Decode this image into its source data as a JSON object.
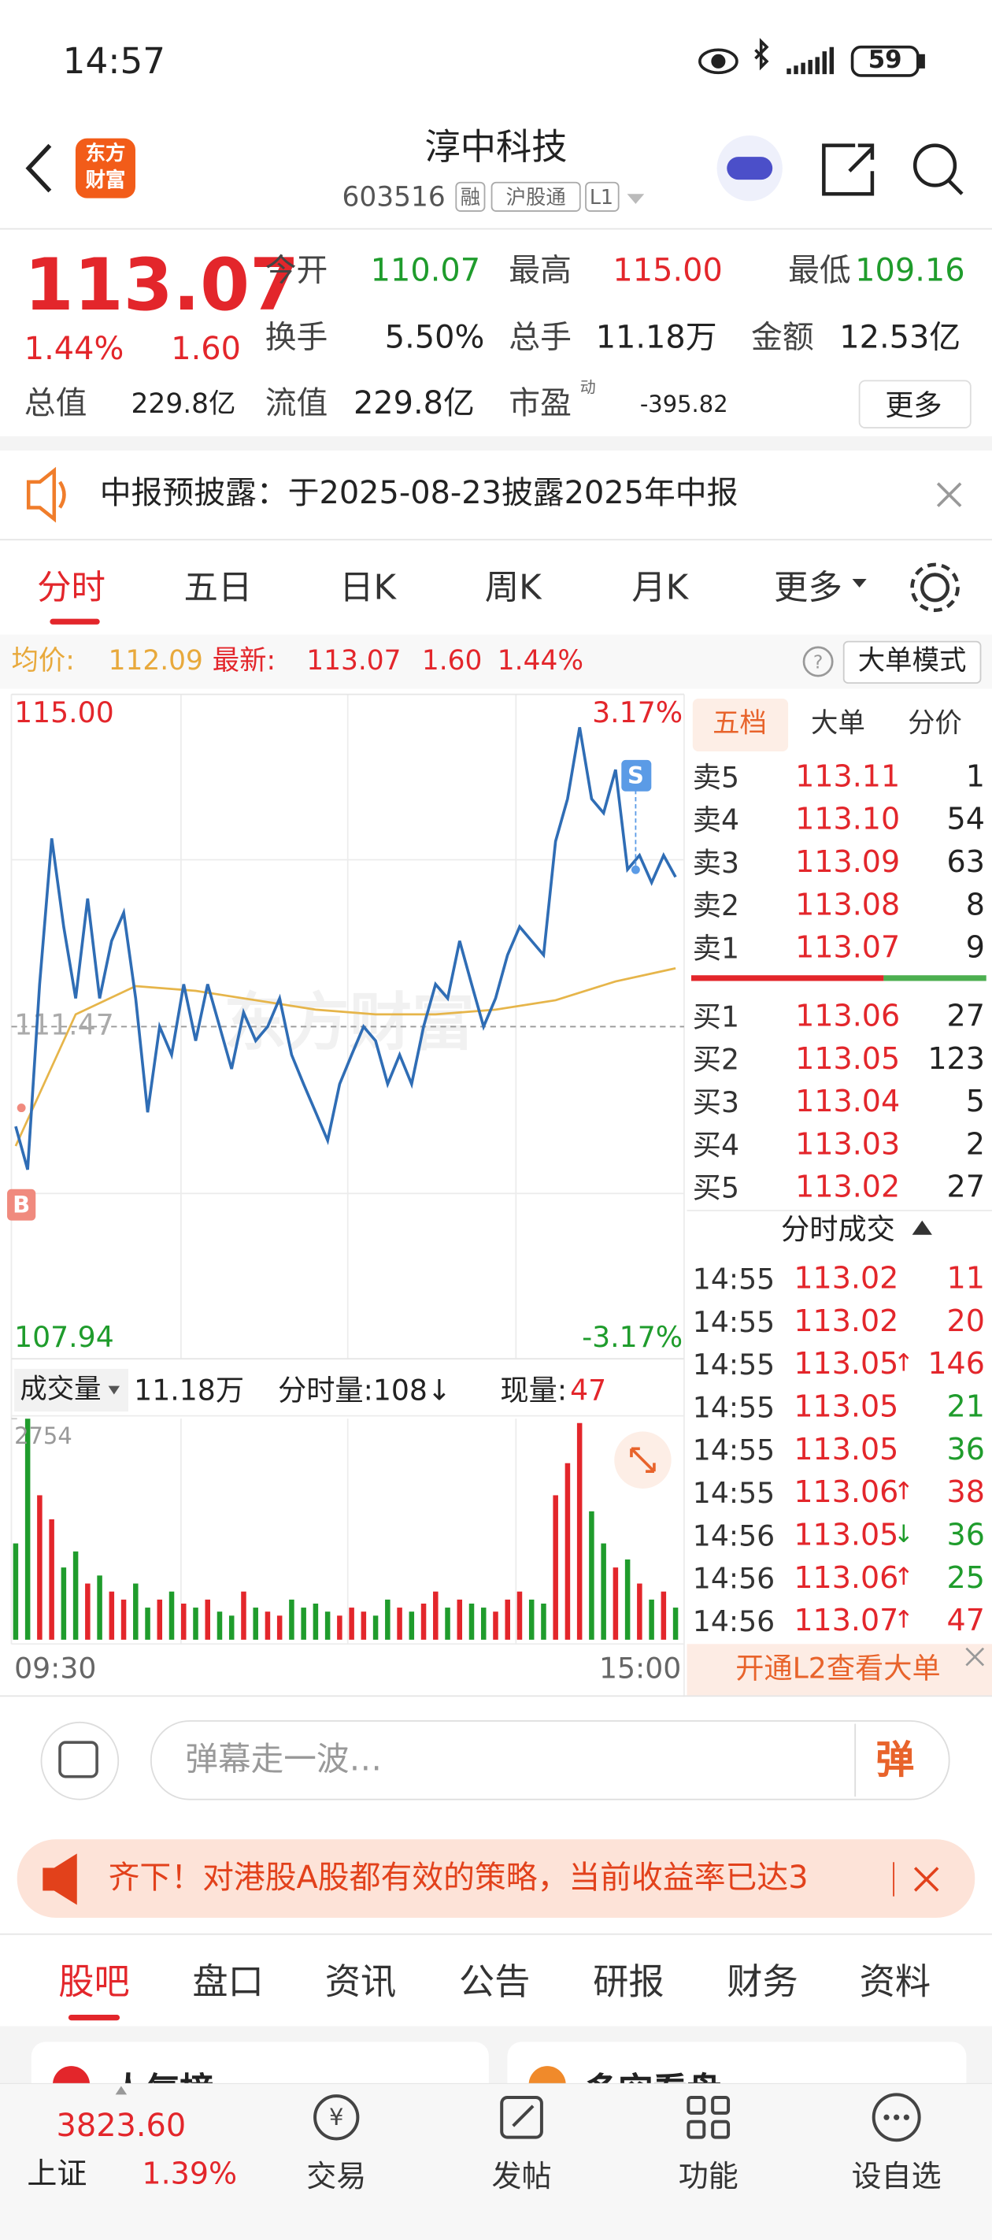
{
  "status_bar": {
    "time": "14:57",
    "battery": "59"
  },
  "header": {
    "logo": [
      "东方",
      "财富"
    ],
    "title": "淳中科技",
    "code": "603516",
    "tags": [
      "融",
      "沪股通",
      "L1"
    ]
  },
  "quote": {
    "price": "113.07",
    "change_pct": "1.44%",
    "change": "1.60",
    "fields": [
      {
        "label": "今开",
        "value": "110.07",
        "color": "#1f9c2c"
      },
      {
        "label": "最高",
        "value": "115.00",
        "color": "#e3262b"
      },
      {
        "label": "最低",
        "value": "109.16",
        "color": "#1f9c2c"
      },
      {
        "label": "换手",
        "value": "5.50%"
      },
      {
        "label": "总手",
        "value": "11.18万"
      },
      {
        "label": "金额",
        "value": "12.53亿"
      },
      {
        "label": "总值",
        "value": "229.8亿"
      },
      {
        "label": "流值",
        "value": "229.8亿"
      },
      {
        "label": "市盈",
        "sup": "动",
        "value": "-395.82"
      }
    ],
    "more": "更多"
  },
  "notice": {
    "text": "中报预披露：于2025-08-23披露2025年中报"
  },
  "period_tabs": {
    "items": [
      "分时",
      "五日",
      "日K",
      "周K",
      "月K",
      "更多"
    ]
  },
  "info_bar": {
    "avg_label": "均价:",
    "avg": "112.09",
    "last_label": "最新:",
    "last": "113.07",
    "change": "1.60",
    "change_pct": "1.44%",
    "mode": "大单模式"
  },
  "chart_data": [
    {
      "type": "line",
      "ylim": [
        107.94,
        115.0
      ],
      "yticks": [
        {
          "value": 115,
          "label": "115.00"
        },
        {
          "value": 111.47,
          "label": "111.47"
        },
        {
          "value": 107.94,
          "label": "107.94"
        }
      ],
      "y2lim": [
        -3.17,
        3.17
      ],
      "y2ticks": [
        {
          "value": 3.17,
          "label": "3.17%"
        },
        {
          "value": -3.17,
          "label": "-3.17%"
        }
      ],
      "series": [
        {
          "color": "#2f6db5",
          "values": [
            110.41,
            109.95,
            111.92,
            113.47,
            112.53,
            111.77,
            112.83,
            111.77,
            112.38,
            112.68,
            111.77,
            110.56,
            111.47,
            111.17,
            111.92,
            111.32,
            111.92,
            111.47,
            111.02,
            111.62,
            111.32,
            111.47,
            111.77,
            111.17,
            110.86,
            110.56,
            110.26,
            110.86,
            111.17,
            111.47,
            111.32,
            110.86,
            111.17,
            110.86,
            111.47,
            111.92,
            111.77,
            112.38,
            111.92,
            111.47,
            111.77,
            112.23,
            112.53,
            112.38,
            112.23,
            113.44,
            113.89,
            114.65,
            113.89,
            113.74,
            114.2,
            113.14,
            113.29,
            113.0,
            113.29,
            113.06
          ]
        },
        {
          "color": "#e6b54a",
          "values": [
            110.2,
            111.6,
            111.9,
            111.85,
            111.75,
            111.65,
            111.6,
            111.6,
            111.65,
            111.75,
            111.95,
            112.09
          ]
        }
      ],
      "markers": [
        "B",
        "S"
      ],
      "watermark": "东方财富"
    },
    {
      "type": "bar",
      "selector": "成交量",
      "total": "11.18万",
      "minute_vol": "分时量:108↓",
      "now_label": "现量:",
      "now": "47",
      "ylim": [
        0,
        2754
      ],
      "yticks": [
        2754
      ],
      "up_color": "#e3262b",
      "down_color": "#1f9c2c",
      "x_labels": [
        "09:30",
        "15:00"
      ],
      "values": [
        1200,
        2754,
        1800,
        1500,
        900,
        1100,
        700,
        800,
        600,
        500,
        700,
        400,
        500,
        600,
        450,
        400,
        500,
        350,
        300,
        600,
        400,
        350,
        300,
        500,
        400,
        450,
        350,
        300,
        400,
        350,
        300,
        500,
        400,
        350,
        450,
        600,
        400,
        500,
        450,
        400,
        350,
        500,
        600,
        500,
        450,
        1800,
        2200,
        2700,
        1600,
        1200,
        900,
        1000,
        700,
        500,
        600,
        400
      ]
    }
  ],
  "order_book": {
    "tabs": [
      "五档",
      "大单",
      "分价"
    ],
    "asks": [
      {
        "label": "卖5",
        "price": "113.11",
        "vol": "1"
      },
      {
        "label": "卖4",
        "price": "113.10",
        "vol": "54"
      },
      {
        "label": "卖3",
        "price": "113.09",
        "vol": "63"
      },
      {
        "label": "卖2",
        "price": "113.08",
        "vol": "8"
      },
      {
        "label": "卖1",
        "price": "113.07",
        "vol": "9"
      }
    ],
    "bids": [
      {
        "label": "买1",
        "price": "113.06",
        "vol": "27"
      },
      {
        "label": "买2",
        "price": "113.05",
        "vol": "123"
      },
      {
        "label": "买3",
        "price": "113.04",
        "vol": "5"
      },
      {
        "label": "买4",
        "price": "113.03",
        "vol": "2"
      },
      {
        "label": "买5",
        "price": "113.02",
        "vol": "27"
      }
    ],
    "trades_title": "分时成交",
    "trades": [
      {
        "time": "14:55",
        "price": "113.02",
        "vol": "11",
        "vol_color": "#e3262b"
      },
      {
        "time": "14:55",
        "price": "113.02",
        "vol": "20",
        "vol_color": "#e3262b"
      },
      {
        "time": "14:55",
        "price": "113.05",
        "arrow": "↑",
        "vol": "146",
        "vol_color": "#e3262b"
      },
      {
        "time": "14:55",
        "price": "113.05",
        "vol": "21",
        "vol_color": "#1f9c2c"
      },
      {
        "time": "14:55",
        "price": "113.05",
        "vol": "36",
        "vol_color": "#1f9c2c"
      },
      {
        "time": "14:55",
        "price": "113.06",
        "arrow": "↑",
        "vol": "38",
        "vol_color": "#e3262b"
      },
      {
        "time": "14:56",
        "price": "113.05",
        "arrow": "↓",
        "vol": "36",
        "vol_color": "#1f9c2c"
      },
      {
        "time": "14:56",
        "price": "113.06",
        "arrow": "↑",
        "vol": "25",
        "vol_color": "#1f9c2c"
      },
      {
        "time": "14:56",
        "price": "113.07",
        "arrow": "↑",
        "vol": "47",
        "vol_color": "#e3262b"
      }
    ],
    "l2": "开通L2查看大单"
  },
  "comment": {
    "placeholder": "弹幕走一波…",
    "button": "弹"
  },
  "ad": {
    "text": "齐下！对港股A股都有效的策略，当前收益率已达3"
  },
  "content_tabs": {
    "items": [
      "股吧",
      "盘口",
      "资讯",
      "公告",
      "研报",
      "财务",
      "资料"
    ]
  },
  "cards": [
    "人气榜",
    "多空看盘"
  ],
  "bottom_nav": {
    "index_value": "3823.60",
    "index_name": "上证",
    "index_pct": "1.39%",
    "items": [
      "交易",
      "发帖",
      "功能",
      "设自选"
    ]
  }
}
